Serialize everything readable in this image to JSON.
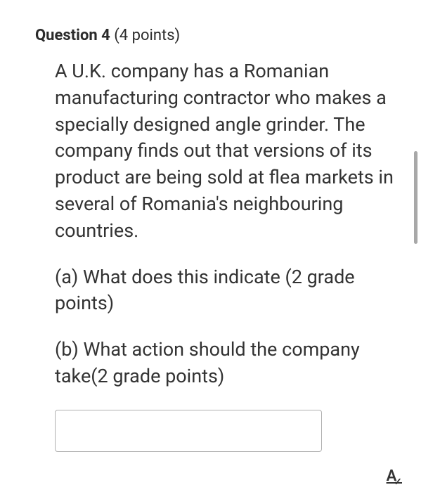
{
  "header": {
    "label": "Question",
    "number": "4",
    "points": "(4 points)"
  },
  "body": {
    "main_text": "A U.K. company has a Romanian manufacturing contractor who makes a specially designed angle grinder. The company finds out that versions of its product are being sold at flea markets in several of Romania's neighbouring countries.",
    "part_a": "(a)  What does this indicate (2 grade points)",
    "part_b": "(b) What action should the company take(2 grade points)"
  },
  "format_icon": {
    "letter": "A",
    "check": "✓"
  },
  "colors": {
    "text": "#333333",
    "background": "#ffffff",
    "border": "#b0b0b0",
    "scrollbar": "#a8a8a8"
  }
}
